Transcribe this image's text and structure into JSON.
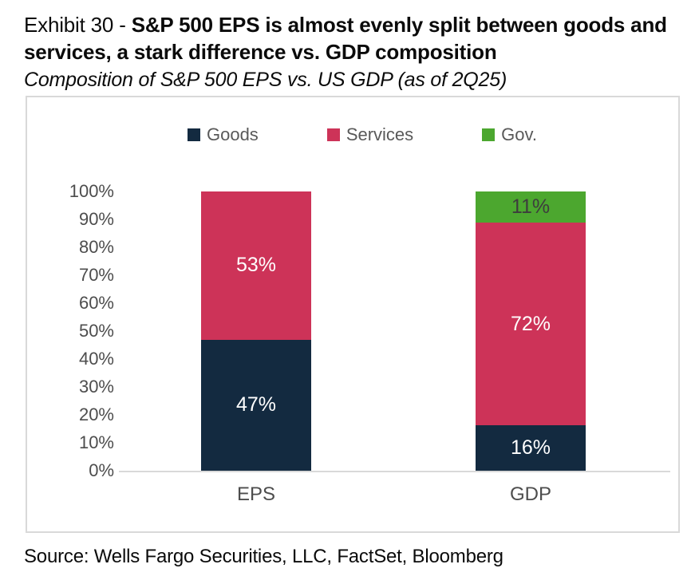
{
  "header": {
    "title_prefix": "Exhibit 30 - ",
    "title_bold": "S&P 500 EPS is almost evenly split between goods and services, a stark difference vs. GDP composition",
    "subtitle": "Composition of S&P 500 EPS vs. US GDP (as of 2Q25)"
  },
  "chart_data": {
    "type": "bar",
    "stacked": true,
    "orientation": "vertical",
    "categories": [
      "EPS",
      "GDP"
    ],
    "series": [
      {
        "name": "Goods",
        "color": "#132a40",
        "label_color": "#ffffff",
        "values": [
          47,
          16
        ]
      },
      {
        "name": "Services",
        "color": "#cd3358",
        "label_color": "#ffffff",
        "values": [
          53,
          72
        ]
      },
      {
        "name": "Gov.",
        "color": "#4ca72f",
        "label_color": "#3d3d3d",
        "values": [
          null,
          11
        ]
      }
    ],
    "value_suffix": "%",
    "ylim": [
      0,
      100
    ],
    "yticks": [
      "100%",
      "90%",
      "80%",
      "70%",
      "60%",
      "50%",
      "40%",
      "30%",
      "20%",
      "10%",
      "0%"
    ],
    "legend_position": "top",
    "grid": false,
    "axis_color": "#d9d9d9"
  },
  "footer": {
    "source": "Source: Wells Fargo Securities, LLC, FactSet, Bloomberg"
  }
}
